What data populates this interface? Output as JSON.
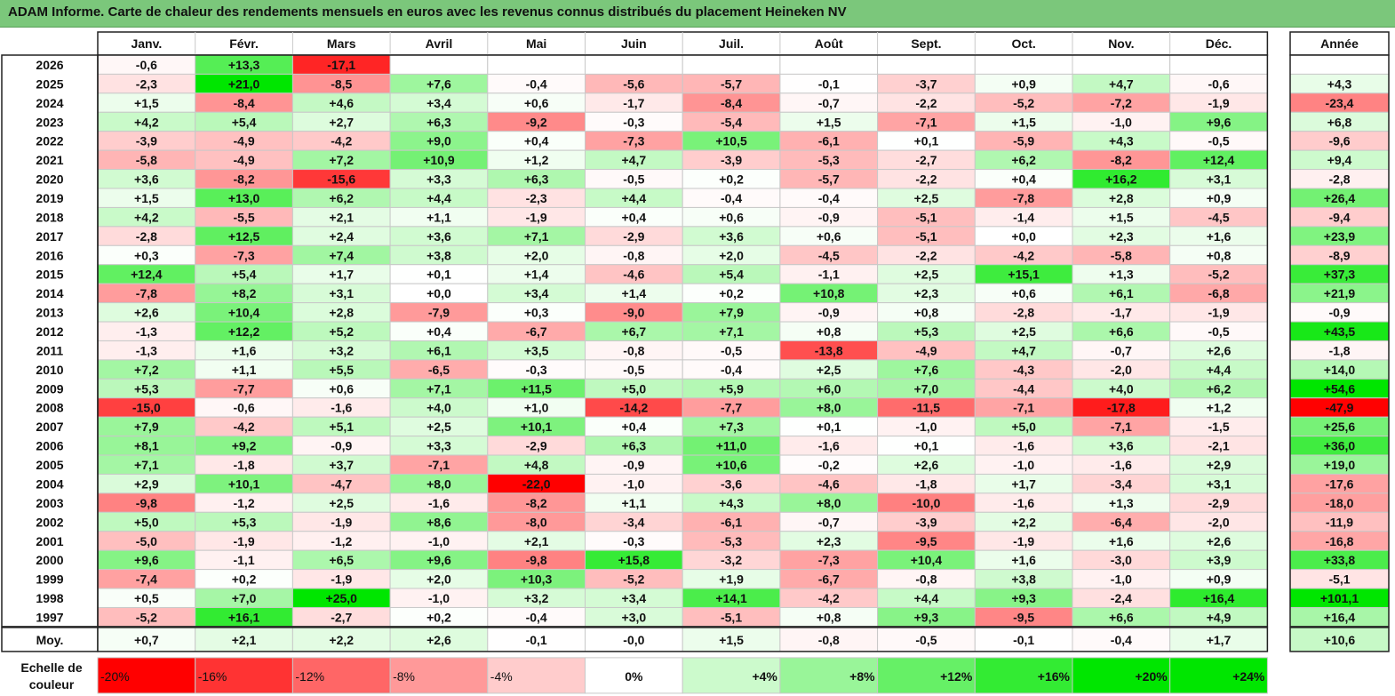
{
  "title": "ADAM Informe. Carte de chaleur des rendements mensuels en euros avec les revenus connus distribués du placement Heineken NV",
  "chart_data": {
    "type": "heatmap",
    "title": "ADAM Informe. Carte de chaleur des rendements mensuels en euros avec les revenus connus distribués du placement Heineken NV",
    "months": [
      "Janv.",
      "Févr.",
      "Mars",
      "Avril",
      "Mai",
      "Juin",
      "Juil.",
      "Août",
      "Sept.",
      "Oct.",
      "Nov.",
      "Déc."
    ],
    "year_header": "Année",
    "rows": [
      {
        "label": "2026",
        "values": [
          "-0,6",
          "+13,3",
          "-17,1",
          null,
          null,
          null,
          null,
          null,
          null,
          null,
          null,
          null
        ],
        "year": null
      },
      {
        "label": "2025",
        "values": [
          "-2,3",
          "+21,0",
          "-8,5",
          "+7,6",
          "-0,4",
          "-5,6",
          "-5,7",
          "-0,1",
          "-3,7",
          "+0,9",
          "+4,7",
          "-0,6"
        ],
        "year": "+4,3"
      },
      {
        "label": "2024",
        "values": [
          "+1,5",
          "-8,4",
          "+4,6",
          "+3,4",
          "+0,6",
          "-1,7",
          "-8,4",
          "-0,7",
          "-2,2",
          "-5,2",
          "-7,2",
          "-1,9"
        ],
        "year": "-23,4"
      },
      {
        "label": "2023",
        "values": [
          "+4,2",
          "+5,4",
          "+2,7",
          "+6,3",
          "-9,2",
          "-0,3",
          "-5,4",
          "+1,5",
          "-7,1",
          "+1,5",
          "-1,0",
          "+9,6"
        ],
        "year": "+6,8"
      },
      {
        "label": "2022",
        "values": [
          "-3,9",
          "-4,9",
          "-4,2",
          "+9,0",
          "+0,4",
          "-7,3",
          "+10,5",
          "-6,1",
          "+0,1",
          "-5,9",
          "+4,3",
          "-0,5"
        ],
        "year": "-9,6"
      },
      {
        "label": "2021",
        "values": [
          "-5,8",
          "-4,9",
          "+7,2",
          "+10,9",
          "+1,2",
          "+4,7",
          "-3,9",
          "-5,3",
          "-2,7",
          "+6,2",
          "-8,2",
          "+12,4"
        ],
        "year": "+9,4"
      },
      {
        "label": "2020",
        "values": [
          "+3,6",
          "-8,2",
          "-15,6",
          "+3,3",
          "+6,3",
          "-0,5",
          "+0,2",
          "-5,7",
          "-2,2",
          "+0,4",
          "+16,2",
          "+3,1"
        ],
        "year": "-2,8"
      },
      {
        "label": "2019",
        "values": [
          "+1,5",
          "+13,0",
          "+6,2",
          "+4,4",
          "-2,3",
          "+4,4",
          "-0,4",
          "-0,4",
          "+2,5",
          "-7,8",
          "+2,8",
          "+0,9"
        ],
        "year": "+26,4"
      },
      {
        "label": "2018",
        "values": [
          "+4,2",
          "-5,5",
          "+2,1",
          "+1,1",
          "-1,9",
          "+0,4",
          "+0,6",
          "-0,9",
          "-5,1",
          "-1,4",
          "+1,5",
          "-4,5"
        ],
        "year": "-9,4"
      },
      {
        "label": "2017",
        "values": [
          "-2,8",
          "+12,5",
          "+2,4",
          "+3,6",
          "+7,1",
          "-2,9",
          "+3,6",
          "+0,6",
          "-5,1",
          "+0,0",
          "+2,3",
          "+1,6"
        ],
        "year": "+23,9"
      },
      {
        "label": "2016",
        "values": [
          "+0,3",
          "-7,3",
          "+7,4",
          "+3,8",
          "+2,0",
          "-0,8",
          "+2,0",
          "-4,5",
          "-2,2",
          "-4,2",
          "-5,8",
          "+0,8"
        ],
        "year": "-8,9"
      },
      {
        "label": "2015",
        "values": [
          "+12,4",
          "+5,4",
          "+1,7",
          "+0,1",
          "+1,4",
          "-4,6",
          "+5,4",
          "-1,1",
          "+2,5",
          "+15,1",
          "+1,3",
          "-5,2"
        ],
        "year": "+37,3"
      },
      {
        "label": "2014",
        "values": [
          "-7,8",
          "+8,2",
          "+3,1",
          "+0,0",
          "+3,4",
          "+1,4",
          "+0,2",
          "+10,8",
          "+2,3",
          "+0,6",
          "+6,1",
          "-6,8"
        ],
        "year": "+21,9"
      },
      {
        "label": "2013",
        "values": [
          "+2,6",
          "+10,4",
          "+2,8",
          "-7,9",
          "+0,3",
          "-9,0",
          "+7,9",
          "-0,9",
          "+0,8",
          "-2,8",
          "-1,7",
          "-1,9"
        ],
        "year": "-0,9"
      },
      {
        "label": "2012",
        "values": [
          "-1,3",
          "+12,2",
          "+5,2",
          "+0,4",
          "-6,7",
          "+6,7",
          "+7,1",
          "+0,8",
          "+5,3",
          "+2,5",
          "+6,6",
          "-0,5"
        ],
        "year": "+43,5"
      },
      {
        "label": "2011",
        "values": [
          "-1,3",
          "+1,6",
          "+3,2",
          "+6,1",
          "+3,5",
          "-0,8",
          "-0,5",
          "-13,8",
          "-4,9",
          "+4,7",
          "-0,7",
          "+2,6"
        ],
        "year": "-1,8"
      },
      {
        "label": "2010",
        "values": [
          "+7,2",
          "+1,1",
          "+5,5",
          "-6,5",
          "-0,3",
          "-0,5",
          "-0,4",
          "+2,5",
          "+7,6",
          "-4,3",
          "-2,0",
          "+4,4"
        ],
        "year": "+14,0"
      },
      {
        "label": "2009",
        "values": [
          "+5,3",
          "-7,7",
          "+0,6",
          "+7,1",
          "+11,5",
          "+5,0",
          "+5,9",
          "+6,0",
          "+7,0",
          "-4,4",
          "+4,0",
          "+6,2"
        ],
        "year": "+54,6"
      },
      {
        "label": "2008",
        "values": [
          "-15,0",
          "-0,6",
          "-1,6",
          "+4,0",
          "+1,0",
          "-14,2",
          "-7,7",
          "+8,0",
          "-11,5",
          "-7,1",
          "-17,8",
          "+1,2"
        ],
        "year": "-47,9"
      },
      {
        "label": "2007",
        "values": [
          "+7,9",
          "-4,2",
          "+5,1",
          "+2,5",
          "+10,1",
          "+0,4",
          "+7,3",
          "+0,1",
          "-1,0",
          "+5,0",
          "-7,1",
          "-1,5"
        ],
        "year": "+25,6"
      },
      {
        "label": "2006",
        "values": [
          "+8,1",
          "+9,2",
          "-0,9",
          "+3,3",
          "-2,9",
          "+6,3",
          "+11,0",
          "-1,6",
          "+0,1",
          "-1,6",
          "+3,6",
          "-2,1"
        ],
        "year": "+36,0"
      },
      {
        "label": "2005",
        "values": [
          "+7,1",
          "-1,8",
          "+3,7",
          "-7,1",
          "+4,8",
          "-0,9",
          "+10,6",
          "-0,2",
          "+2,6",
          "-1,0",
          "-1,6",
          "+2,9"
        ],
        "year": "+19,0"
      },
      {
        "label": "2004",
        "values": [
          "+2,9",
          "+10,1",
          "-4,7",
          "+8,0",
          "-22,0",
          "-1,0",
          "-3,6",
          "-4,6",
          "-1,8",
          "+1,7",
          "-3,4",
          "+3,1"
        ],
        "year": "-17,6"
      },
      {
        "label": "2003",
        "values": [
          "-9,8",
          "-1,2",
          "+2,5",
          "-1,6",
          "-8,2",
          "+1,1",
          "+4,3",
          "+8,0",
          "-10,0",
          "-1,6",
          "+1,3",
          "-2,9"
        ],
        "year": "-18,0"
      },
      {
        "label": "2002",
        "values": [
          "+5,0",
          "+5,3",
          "-1,9",
          "+8,6",
          "-8,0",
          "-3,4",
          "-6,1",
          "-0,7",
          "-3,9",
          "+2,2",
          "-6,4",
          "-2,0"
        ],
        "year": "-11,9"
      },
      {
        "label": "2001",
        "values": [
          "-5,0",
          "-1,9",
          "-1,2",
          "-1,0",
          "+2,1",
          "-0,3",
          "-5,3",
          "+2,3",
          "-9,5",
          "-1,9",
          "+1,6",
          "+2,6"
        ],
        "year": "-16,8"
      },
      {
        "label": "2000",
        "values": [
          "+9,6",
          "-1,1",
          "+6,5",
          "+9,6",
          "-9,8",
          "+15,8",
          "-3,2",
          "-7,3",
          "+10,4",
          "+1,6",
          "-3,0",
          "+3,9"
        ],
        "year": "+33,8"
      },
      {
        "label": "1999",
        "values": [
          "-7,4",
          "+0,2",
          "-1,9",
          "+2,0",
          "+10,3",
          "-5,2",
          "+1,9",
          "-6,7",
          "-0,8",
          "+3,8",
          "-1,0",
          "+0,9"
        ],
        "year": "-5,1"
      },
      {
        "label": "1998",
        "values": [
          "+0,5",
          "+7,0",
          "+25,0",
          "-1,0",
          "+3,2",
          "+3,4",
          "+14,1",
          "-4,2",
          "+4,4",
          "+9,3",
          "-2,4",
          "+16,4"
        ],
        "year": "+101,1"
      },
      {
        "label": "1997",
        "values": [
          "-5,2",
          "+16,1",
          "-2,7",
          "+0,2",
          "-0,4",
          "+3,0",
          "-5,1",
          "+0,8",
          "+9,3",
          "-9,5",
          "+6,6",
          "+4,9"
        ],
        "year": "+16,4"
      }
    ],
    "average": {
      "label": "Moy.",
      "values": [
        "+0,7",
        "+2,1",
        "+2,2",
        "+2,6",
        "-0,1",
        "-0,0",
        "+1,5",
        "-0,8",
        "-0,5",
        "-0,1",
        "-0,4",
        "+1,7"
      ],
      "year": "+10,6"
    },
    "scale": {
      "label_line1": "Echelle de",
      "label_line2": "couleur",
      "stops": [
        {
          "label": "-20%",
          "value": -20
        },
        {
          "label": "-16%",
          "value": -16
        },
        {
          "label": "-12%",
          "value": -12
        },
        {
          "label": "-8%",
          "value": -8
        },
        {
          "label": "-4%",
          "value": -4
        },
        {
          "label": "0%",
          "value": 0
        },
        {
          "label": "+4%",
          "value": 4
        },
        {
          "label": "+8%",
          "value": 8
        },
        {
          "label": "+12%",
          "value": 12
        },
        {
          "label": "+16%",
          "value": 16
        },
        {
          "label": "+20%",
          "value": 20
        },
        {
          "label": "+24%",
          "value": 24
        }
      ]
    }
  },
  "colors": {
    "title_bg": "#7bc77b",
    "negative_max": "#ff0000",
    "positive_max": "#00e600",
    "neutral": "#ffffff",
    "grid": "#c8c8c8",
    "border": "#222222"
  }
}
